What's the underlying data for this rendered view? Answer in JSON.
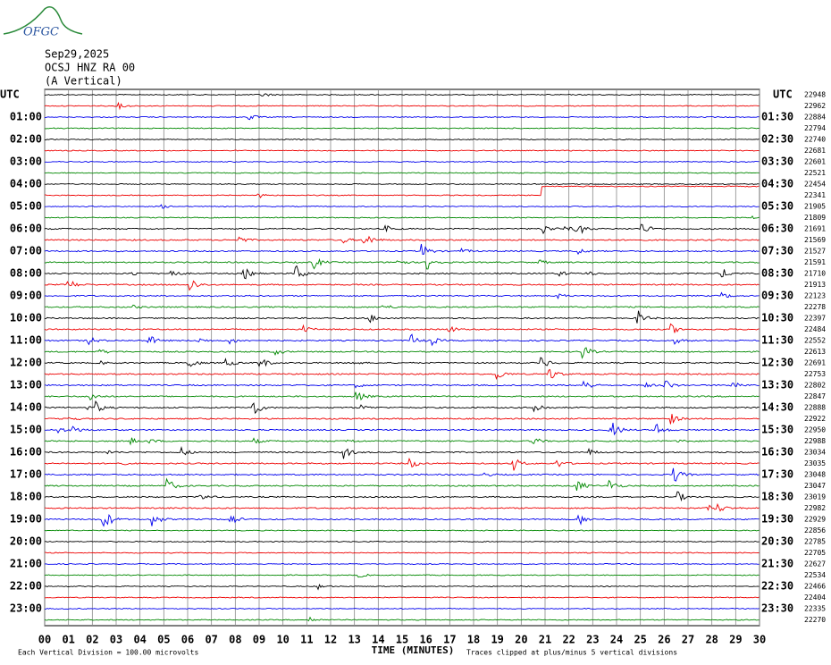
{
  "logo": "OFGC",
  "header": {
    "date": "Sep29,2025",
    "station": "OCSJ HNZ RA 00",
    "component": "(A Vertical)"
  },
  "left_axis": {
    "title": "UTC",
    "labels": [
      "01:00",
      "02:00",
      "03:00",
      "04:00",
      "05:00",
      "06:00",
      "07:00",
      "08:00",
      "09:00",
      "10:00",
      "11:00",
      "12:00",
      "13:00",
      "14:00",
      "15:00",
      "16:00",
      "17:00",
      "18:00",
      "19:00",
      "20:00",
      "21:00",
      "22:00",
      "23:00"
    ]
  },
  "right_axis": {
    "title": "UTC",
    "labels": [
      "01:30",
      "02:30",
      "03:30",
      "04:30",
      "05:30",
      "06:30",
      "07:30",
      "08:30",
      "09:30",
      "10:30",
      "11:30",
      "12:30",
      "13:30",
      "14:30",
      "15:30",
      "16:30",
      "17:30",
      "18:30",
      "19:30",
      "20:30",
      "21:30",
      "22:30",
      "23:30"
    ]
  },
  "trace_counts": [
    22948,
    22962,
    22884,
    22794,
    22740,
    22681,
    22601,
    22521,
    22454,
    22341,
    21905,
    21809,
    21691,
    21569,
    21527,
    21591,
    21710,
    21913,
    22123,
    22278,
    22397,
    22484,
    22552,
    22613,
    22691,
    22753,
    22802,
    22847,
    22888,
    22922,
    22950,
    22988,
    23034,
    23035,
    23048,
    23047,
    23019,
    22982,
    22929,
    22856,
    22785,
    22705,
    22627,
    22534,
    22466,
    22404,
    22335,
    22270
  ],
  "x_axis": {
    "labels": [
      "00",
      "01",
      "02",
      "03",
      "04",
      "05",
      "06",
      "07",
      "08",
      "09",
      "10",
      "11",
      "12",
      "13",
      "14",
      "15",
      "16",
      "17",
      "18",
      "19",
      "20",
      "21",
      "22",
      "23",
      "24",
      "25",
      "26",
      "27",
      "28",
      "29",
      "30"
    ],
    "title": "TIME (MINUTES)"
  },
  "footer": {
    "scale": "Each Vertical Division =  100.00 microvolts",
    "clip": "Traces clipped at plus/minus 5 vertical divisions"
  }
}
